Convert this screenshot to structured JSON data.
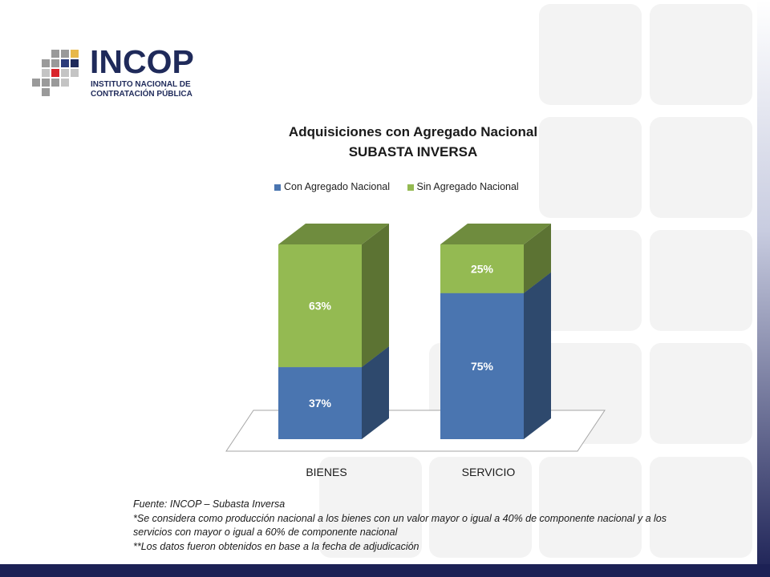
{
  "logo": {
    "wordmark": "INCOP",
    "subtitle_line1": "INSTITUTO NACIONAL DE",
    "subtitle_line2": "CONTRATACIÓN PÚBLICA"
  },
  "chart_data": {
    "type": "bar",
    "stacked": true,
    "three_d": true,
    "title_line1": "Adquisiciones  con Agregado Nacional",
    "title_line2": "SUBASTA INVERSA",
    "categories": [
      "BIENES",
      "SERVICIO"
    ],
    "series": [
      {
        "name": "Con Agregado Nacional",
        "values": [
          37,
          75
        ],
        "labels": [
          "37%",
          "75%"
        ],
        "color": "#4a75b0"
      },
      {
        "name": "Sin Agregado Nacional",
        "values": [
          63,
          25
        ],
        "labels": [
          "63%",
          "25%"
        ],
        "color": "#94ba52"
      }
    ],
    "ylim": [
      0,
      100
    ],
    "legend_position": "top",
    "grid": false
  },
  "footnotes": {
    "source": "Fuente: INCOP – Subasta Inversa",
    "note1": "*Se considera como producción nacional a los bienes con un valor mayor o igual a 40% de componente nacional y a los servicios con mayor o igual a 60% de componente nacional",
    "note2": "**Los datos fueron obtenidos en base a la fecha de adjudicación"
  },
  "colors": {
    "brand_navy": "#1c2155",
    "tile_gray": "#f2f2f2"
  }
}
